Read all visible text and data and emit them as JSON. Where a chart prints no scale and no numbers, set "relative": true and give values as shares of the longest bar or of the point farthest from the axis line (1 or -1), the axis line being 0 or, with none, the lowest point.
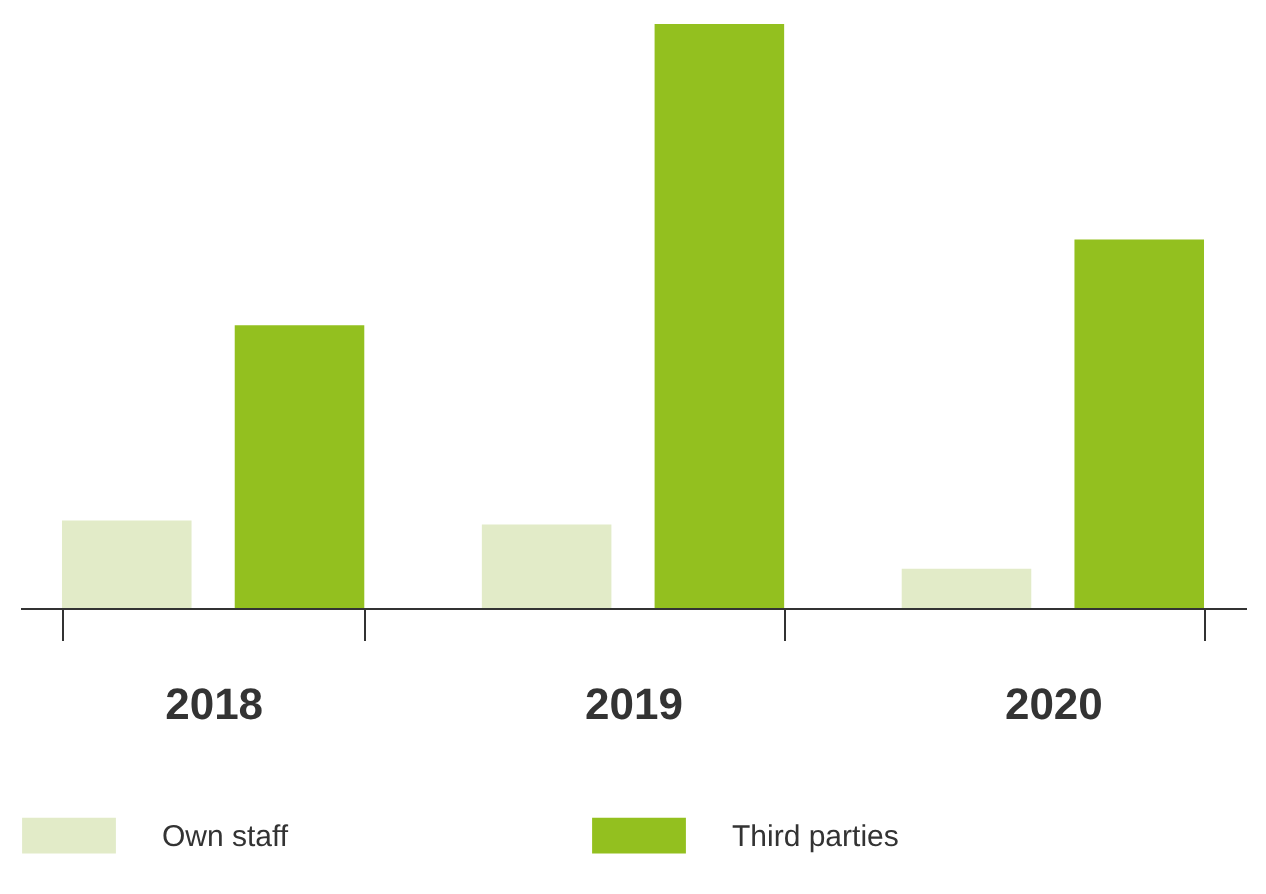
{
  "chart_data": {
    "type": "bar",
    "relative": true,
    "categories": [
      "2018",
      "2019",
      "2020"
    ],
    "series": [
      {
        "name": "Own staff",
        "color": "#e2ebc8",
        "values": [
          0.15,
          0.143,
          0.067
        ]
      },
      {
        "name": "Third parties",
        "color": "#93c01f",
        "values": [
          0.484,
          1,
          0.631
        ]
      }
    ],
    "legend": "bottom",
    "grid": false
  }
}
